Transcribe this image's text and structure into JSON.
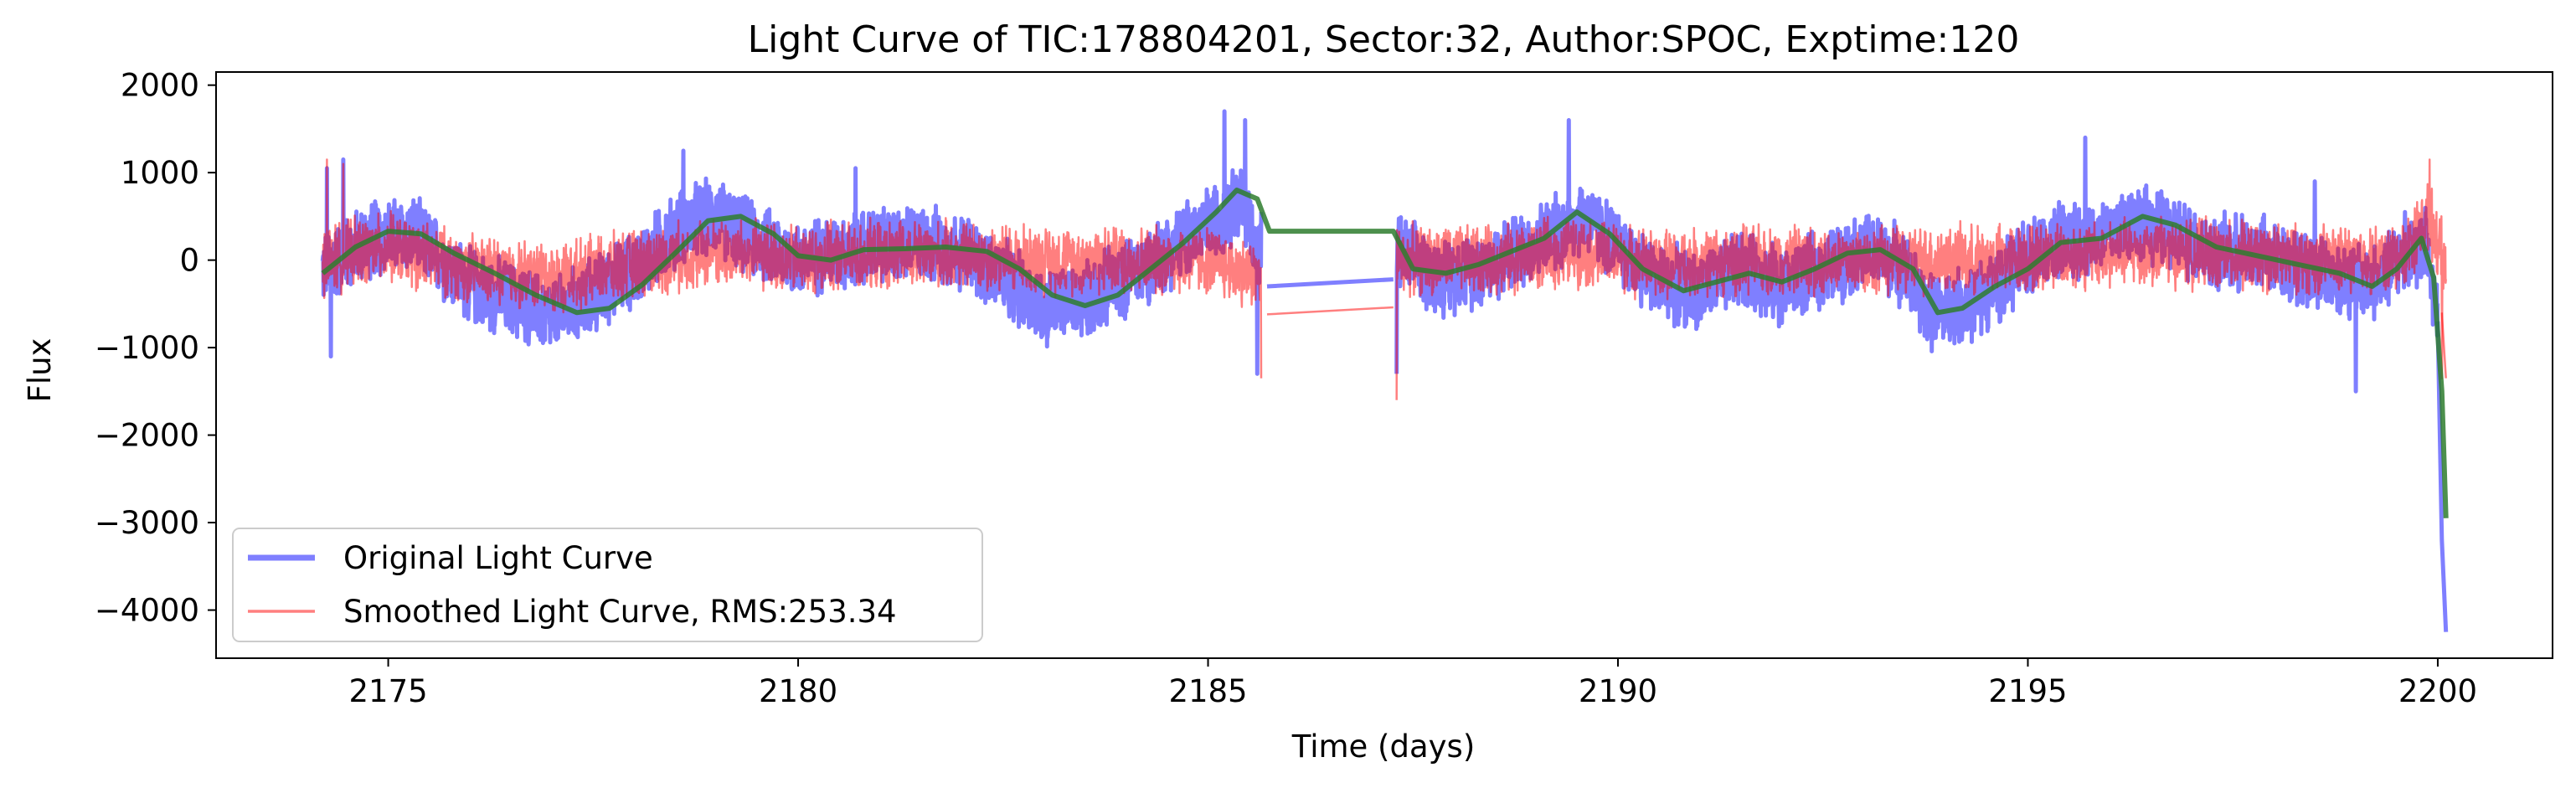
{
  "chart_data": {
    "type": "line",
    "title": "Light Curve of TIC:178804201, Sector:32, Author:SPOC, Exptime:120",
    "xlabel": "Time (days)",
    "ylabel": "Flux",
    "xlim": [
      2172.9,
      2201.4
    ],
    "ylim": [
      -4550,
      2150
    ],
    "x_ticks": [
      2175,
      2180,
      2185,
      2190,
      2195,
      2200
    ],
    "y_ticks": [
      2000,
      1000,
      0,
      -1000,
      -2000,
      -3000,
      -4000
    ],
    "x_tick_labels": [
      "2175",
      "2180",
      "2185",
      "2190",
      "2195",
      "2200"
    ],
    "y_tick_labels": [
      "2000",
      "1000",
      "0",
      "−1000",
      "−2000",
      "−3000",
      "−4000"
    ],
    "grid": false,
    "legend_position": "lower-left",
    "series": [
      {
        "name": "Original Light Curve",
        "color": "#0000ff",
        "opacity": 0.5,
        "mean": [
          [
            2174.2,
            -100
          ],
          [
            2174.8,
            250
          ],
          [
            2175.3,
            300
          ],
          [
            2176.0,
            -300
          ],
          [
            2176.5,
            -450
          ],
          [
            2177.0,
            -650
          ],
          [
            2177.5,
            -400
          ],
          [
            2178.0,
            -100
          ],
          [
            2178.6,
            400
          ],
          [
            2179.0,
            500
          ],
          [
            2179.5,
            200
          ],
          [
            2180.0,
            0
          ],
          [
            2180.5,
            100
          ],
          [
            2181.0,
            150
          ],
          [
            2181.5,
            200
          ],
          [
            2182.0,
            100
          ],
          [
            2182.5,
            -200
          ],
          [
            2183.0,
            -550
          ],
          [
            2183.5,
            -450
          ],
          [
            2184.0,
            -200
          ],
          [
            2184.5,
            100
          ],
          [
            2185.0,
            400
          ],
          [
            2185.4,
            700
          ],
          [
            2185.65,
            0
          ]
        ],
        "amp": 500,
        "gap_line": [
          [
            2185.72,
            -300
          ],
          [
            2187.26,
            -220
          ]
        ],
        "mean2": [
          [
            2187.3,
            100
          ],
          [
            2187.8,
            -200
          ],
          [
            2188.3,
            -100
          ],
          [
            2188.8,
            100
          ],
          [
            2189.2,
            300
          ],
          [
            2189.6,
            500
          ],
          [
            2190.0,
            150
          ],
          [
            2190.5,
            -250
          ],
          [
            2191.0,
            -350
          ],
          [
            2191.5,
            -100
          ],
          [
            2192.0,
            -300
          ],
          [
            2192.5,
            -100
          ],
          [
            2193.0,
            100
          ],
          [
            2193.4,
            0
          ],
          [
            2193.8,
            -600
          ],
          [
            2194.3,
            -500
          ],
          [
            2194.8,
            -150
          ],
          [
            2195.2,
            200
          ],
          [
            2195.8,
            250
          ],
          [
            2196.3,
            450
          ],
          [
            2196.8,
            300
          ],
          [
            2197.3,
            50
          ],
          [
            2197.8,
            100
          ],
          [
            2198.3,
            -100
          ],
          [
            2198.8,
            -200
          ],
          [
            2199.3,
            -250
          ],
          [
            2199.6,
            100
          ],
          [
            2199.85,
            150
          ],
          [
            2200.0,
            -700
          ]
        ],
        "amp2": 500,
        "tail": [
          [
            2200.0,
            -700
          ],
          [
            2200.05,
            -3200
          ],
          [
            2200.1,
            -4250
          ]
        ],
        "spikes": [
          [
            2174.25,
            1050
          ],
          [
            2174.3,
            -1100
          ],
          [
            2174.45,
            1150
          ],
          [
            2178.6,
            1250
          ],
          [
            2180.7,
            1050
          ],
          [
            2185.2,
            1700
          ],
          [
            2185.45,
            1600
          ],
          [
            2185.6,
            -1300
          ],
          [
            2189.4,
            1600
          ],
          [
            2195.7,
            1400
          ],
          [
            2198.5,
            900
          ],
          [
            2199.0,
            -1500
          ],
          [
            2199.6,
            550
          ]
        ],
        "values_note_free": true
      },
      {
        "name": "Smoothed Light Curve, RMS:253.34",
        "color": "#ff0000",
        "opacity": 0.5,
        "mean": [
          [
            2174.2,
            0
          ],
          [
            2175.0,
            150
          ],
          [
            2176.0,
            -100
          ],
          [
            2177.0,
            -200
          ],
          [
            2178.0,
            -50
          ],
          [
            2179.0,
            100
          ],
          [
            2180.0,
            0
          ],
          [
            2181.0,
            50
          ],
          [
            2182.0,
            50
          ],
          [
            2183.0,
            0
          ],
          [
            2184.0,
            0
          ],
          [
            2185.0,
            0
          ],
          [
            2185.65,
            -200
          ]
        ],
        "amp": 450,
        "gap_line": [
          [
            2185.72,
            -620
          ],
          [
            2187.26,
            -540
          ]
        ],
        "mean2": [
          [
            2187.3,
            0
          ],
          [
            2188.5,
            0
          ],
          [
            2189.5,
            100
          ],
          [
            2190.5,
            -50
          ],
          [
            2191.5,
            0
          ],
          [
            2192.5,
            0
          ],
          [
            2193.5,
            0
          ],
          [
            2194.5,
            0
          ],
          [
            2195.5,
            50
          ],
          [
            2196.5,
            100
          ],
          [
            2197.5,
            50
          ],
          [
            2198.5,
            0
          ],
          [
            2199.5,
            0
          ],
          [
            2199.9,
            500
          ],
          [
            2200.1,
            -100
          ]
        ],
        "amp2": 450,
        "tail": [
          [
            2200.05,
            -600
          ],
          [
            2200.1,
            -1350
          ]
        ],
        "spikes": [
          [
            2174.25,
            1150
          ],
          [
            2174.45,
            1100
          ],
          [
            2185.7,
            -1600
          ],
          [
            2199.9,
            1150
          ],
          [
            2200.05,
            -1350
          ]
        ]
      },
      {
        "name": "",
        "color": "#2e7d2e",
        "opacity": 0.85,
        "points": [
          [
            2174.2,
            -150
          ],
          [
            2174.6,
            150
          ],
          [
            2175.0,
            330
          ],
          [
            2175.4,
            300
          ],
          [
            2175.8,
            80
          ],
          [
            2176.3,
            -150
          ],
          [
            2176.8,
            -400
          ],
          [
            2177.3,
            -600
          ],
          [
            2177.7,
            -550
          ],
          [
            2178.1,
            -280
          ],
          [
            2178.5,
            80
          ],
          [
            2178.9,
            450
          ],
          [
            2179.3,
            500
          ],
          [
            2179.7,
            300
          ],
          [
            2180.0,
            50
          ],
          [
            2180.4,
            0
          ],
          [
            2180.8,
            120
          ],
          [
            2181.3,
            130
          ],
          [
            2181.8,
            150
          ],
          [
            2182.3,
            100
          ],
          [
            2182.7,
            -100
          ],
          [
            2183.1,
            -400
          ],
          [
            2183.5,
            -520
          ],
          [
            2183.9,
            -400
          ],
          [
            2184.3,
            -100
          ],
          [
            2184.7,
            200
          ],
          [
            2185.1,
            550
          ],
          [
            2185.35,
            800
          ],
          [
            2185.6,
            700
          ],
          [
            2185.75,
            330
          ],
          [
            2187.26,
            330
          ],
          [
            2187.5,
            -100
          ],
          [
            2187.9,
            -150
          ],
          [
            2188.3,
            -50
          ],
          [
            2188.7,
            100
          ],
          [
            2189.1,
            250
          ],
          [
            2189.5,
            550
          ],
          [
            2189.9,
            300
          ],
          [
            2190.3,
            -100
          ],
          [
            2190.8,
            -350
          ],
          [
            2191.2,
            -250
          ],
          [
            2191.6,
            -150
          ],
          [
            2192.0,
            -250
          ],
          [
            2192.4,
            -100
          ],
          [
            2192.8,
            80
          ],
          [
            2193.2,
            120
          ],
          [
            2193.6,
            -100
          ],
          [
            2193.9,
            -600
          ],
          [
            2194.2,
            -550
          ],
          [
            2194.6,
            -300
          ],
          [
            2195.0,
            -100
          ],
          [
            2195.4,
            200
          ],
          [
            2195.9,
            250
          ],
          [
            2196.4,
            500
          ],
          [
            2196.8,
            400
          ],
          [
            2197.3,
            150
          ],
          [
            2197.8,
            50
          ],
          [
            2198.3,
            -50
          ],
          [
            2198.8,
            -150
          ],
          [
            2199.2,
            -300
          ],
          [
            2199.5,
            -100
          ],
          [
            2199.8,
            250
          ],
          [
            2199.95,
            -200
          ],
          [
            2200.05,
            -1500
          ],
          [
            2200.1,
            -2950
          ]
        ]
      }
    ]
  }
}
